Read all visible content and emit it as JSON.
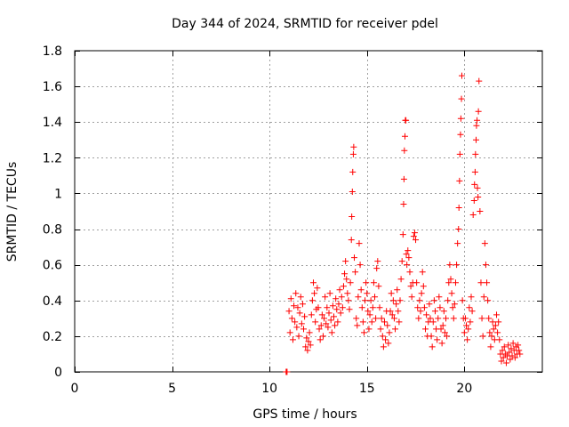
{
  "chart_data": {
    "type": "scatter",
    "title": "Day 344 of 2024, SRMTID for receiver pdel",
    "xlabel": "GPS time / hours",
    "ylabel": "SRMTID / TECUs",
    "xlim": [
      0,
      24
    ],
    "ylim": [
      0,
      1.8
    ],
    "xticks": [
      0,
      5,
      10,
      15,
      20
    ],
    "yticks": [
      0,
      0.2,
      0.4,
      0.6,
      0.8,
      1.0,
      1.2,
      1.4,
      1.6,
      1.8
    ],
    "xtick_labels": [
      "0",
      "5",
      "10",
      "15",
      "20"
    ],
    "ytick_labels": [
      "0",
      "0.2",
      "0.4",
      "0.6",
      "0.8",
      "1",
      "1.2",
      "1.4",
      "1.6",
      "1.8"
    ],
    "grid": true,
    "marker": "plus",
    "color": "#ff0000",
    "series": [
      {
        "name": "SRMTID",
        "points": [
          [
            10.85,
            0.0
          ],
          [
            10.87,
            0.0
          ],
          [
            10.9,
            0.0
          ],
          [
            11.0,
            0.34
          ],
          [
            11.05,
            0.22
          ],
          [
            11.1,
            0.41
          ],
          [
            11.15,
            0.3
          ],
          [
            11.2,
            0.18
          ],
          [
            11.25,
            0.37
          ],
          [
            11.3,
            0.28
          ],
          [
            11.35,
            0.44
          ],
          [
            11.4,
            0.25
          ],
          [
            11.45,
            0.36
          ],
          [
            11.5,
            0.2
          ],
          [
            11.55,
            0.33
          ],
          [
            11.6,
            0.42
          ],
          [
            11.65,
            0.27
          ],
          [
            11.7,
            0.38
          ],
          [
            11.75,
            0.24
          ],
          [
            11.8,
            0.31
          ],
          [
            11.85,
            0.14
          ],
          [
            11.9,
            0.19
          ],
          [
            11.95,
            0.12
          ],
          [
            12.0,
            0.17
          ],
          [
            12.05,
            0.22
          ],
          [
            12.1,
            0.15
          ],
          [
            12.15,
            0.32
          ],
          [
            12.2,
            0.4
          ],
          [
            12.25,
            0.5
          ],
          [
            12.3,
            0.44
          ],
          [
            12.35,
            0.28
          ],
          [
            12.4,
            0.35
          ],
          [
            12.45,
            0.47
          ],
          [
            12.5,
            0.36
          ],
          [
            12.55,
            0.24
          ],
          [
            12.6,
            0.18
          ],
          [
            12.65,
            0.26
          ],
          [
            12.7,
            0.32
          ],
          [
            12.75,
            0.2
          ],
          [
            12.8,
            0.3
          ],
          [
            12.85,
            0.42
          ],
          [
            12.9,
            0.27
          ],
          [
            12.95,
            0.36
          ],
          [
            13.0,
            0.25
          ],
          [
            13.05,
            0.33
          ],
          [
            13.1,
            0.44
          ],
          [
            13.15,
            0.29
          ],
          [
            13.2,
            0.22
          ],
          [
            13.25,
            0.37
          ],
          [
            13.3,
            0.31
          ],
          [
            13.35,
            0.26
          ],
          [
            13.4,
            0.41
          ],
          [
            13.45,
            0.35
          ],
          [
            13.5,
            0.28
          ],
          [
            13.55,
            0.38
          ],
          [
            13.6,
            0.46
          ],
          [
            13.65,
            0.33
          ],
          [
            13.7,
            0.42
          ],
          [
            13.75,
            0.36
          ],
          [
            13.8,
            0.48
          ],
          [
            13.85,
            0.55
          ],
          [
            13.9,
            0.62
          ],
          [
            13.95,
            0.52
          ],
          [
            14.0,
            0.44
          ],
          [
            14.05,
            0.4
          ],
          [
            14.1,
            0.35
          ],
          [
            14.15,
            0.5
          ],
          [
            14.2,
            0.74
          ],
          [
            14.22,
            0.87
          ],
          [
            14.25,
            1.01
          ],
          [
            14.27,
            1.12
          ],
          [
            14.3,
            1.22
          ],
          [
            14.32,
            1.26
          ],
          [
            14.35,
            0.64
          ],
          [
            14.4,
            0.56
          ],
          [
            14.45,
            0.3
          ],
          [
            14.5,
            0.26
          ],
          [
            14.55,
            0.42
          ],
          [
            14.6,
            0.72
          ],
          [
            14.65,
            0.6
          ],
          [
            14.7,
            0.46
          ],
          [
            14.75,
            0.36
          ],
          [
            14.8,
            0.28
          ],
          [
            14.85,
            0.22
          ],
          [
            14.9,
            0.4
          ],
          [
            14.95,
            0.5
          ],
          [
            15.0,
            0.44
          ],
          [
            15.05,
            0.34
          ],
          [
            15.1,
            0.24
          ],
          [
            15.15,
            0.32
          ],
          [
            15.2,
            0.4
          ],
          [
            15.25,
            0.28
          ],
          [
            15.3,
            0.36
          ],
          [
            15.35,
            0.5
          ],
          [
            15.4,
            0.42
          ],
          [
            15.45,
            0.3
          ],
          [
            15.5,
            0.58
          ],
          [
            15.55,
            0.62
          ],
          [
            15.6,
            0.48
          ],
          [
            15.65,
            0.36
          ],
          [
            15.7,
            0.24
          ],
          [
            15.75,
            0.3
          ],
          [
            15.8,
            0.2
          ],
          [
            15.85,
            0.14
          ],
          [
            15.9,
            0.28
          ],
          [
            15.95,
            0.18
          ],
          [
            16.0,
            0.34
          ],
          [
            16.05,
            0.26
          ],
          [
            16.1,
            0.16
          ],
          [
            16.15,
            0.22
          ],
          [
            16.2,
            0.34
          ],
          [
            16.25,
            0.44
          ],
          [
            16.3,
            0.32
          ],
          [
            16.35,
            0.4
          ],
          [
            16.4,
            0.3
          ],
          [
            16.45,
            0.24
          ],
          [
            16.5,
            0.38
          ],
          [
            16.55,
            0.46
          ],
          [
            16.6,
            0.34
          ],
          [
            16.65,
            0.28
          ],
          [
            16.7,
            0.4
          ],
          [
            16.75,
            0.52
          ],
          [
            16.8,
            0.62
          ],
          [
            16.85,
            0.77
          ],
          [
            16.88,
            0.94
          ],
          [
            16.9,
            1.08
          ],
          [
            16.92,
            1.24
          ],
          [
            16.95,
            1.32
          ],
          [
            16.97,
            1.41
          ],
          [
            17.0,
            1.41
          ],
          [
            17.02,
            0.66
          ],
          [
            17.05,
            0.6
          ],
          [
            17.1,
            0.68
          ],
          [
            17.15,
            0.64
          ],
          [
            17.2,
            0.56
          ],
          [
            17.25,
            0.48
          ],
          [
            17.3,
            0.42
          ],
          [
            17.35,
            0.5
          ],
          [
            17.4,
            0.76
          ],
          [
            17.45,
            0.78
          ],
          [
            17.5,
            0.74
          ],
          [
            17.55,
            0.5
          ],
          [
            17.6,
            0.36
          ],
          [
            17.65,
            0.3
          ],
          [
            17.7,
            0.4
          ],
          [
            17.75,
            0.34
          ],
          [
            17.8,
            0.44
          ],
          [
            17.85,
            0.56
          ],
          [
            17.9,
            0.48
          ],
          [
            17.95,
            0.36
          ],
          [
            18.0,
            0.24
          ],
          [
            18.05,
            0.32
          ],
          [
            18.1,
            0.2
          ],
          [
            18.15,
            0.28
          ],
          [
            18.2,
            0.38
          ],
          [
            18.25,
            0.3
          ],
          [
            18.3,
            0.2
          ],
          [
            18.35,
            0.14
          ],
          [
            18.4,
            0.28
          ],
          [
            18.45,
            0.4
          ],
          [
            18.5,
            0.34
          ],
          [
            18.55,
            0.24
          ],
          [
            18.6,
            0.18
          ],
          [
            18.65,
            0.3
          ],
          [
            18.7,
            0.42
          ],
          [
            18.75,
            0.36
          ],
          [
            18.8,
            0.24
          ],
          [
            18.85,
            0.16
          ],
          [
            18.9,
            0.26
          ],
          [
            18.95,
            0.34
          ],
          [
            19.0,
            0.22
          ],
          [
            19.05,
            0.3
          ],
          [
            19.1,
            0.2
          ],
          [
            19.15,
            0.4
          ],
          [
            19.2,
            0.5
          ],
          [
            19.25,
            0.6
          ],
          [
            19.3,
            0.52
          ],
          [
            19.35,
            0.44
          ],
          [
            19.4,
            0.36
          ],
          [
            19.45,
            0.3
          ],
          [
            19.5,
            0.38
          ],
          [
            19.55,
            0.5
          ],
          [
            19.6,
            0.6
          ],
          [
            19.65,
            0.72
          ],
          [
            19.7,
            0.8
          ],
          [
            19.72,
            0.92
          ],
          [
            19.75,
            1.07
          ],
          [
            19.77,
            1.22
          ],
          [
            19.8,
            1.33
          ],
          [
            19.82,
            1.42
          ],
          [
            19.85,
            1.53
          ],
          [
            19.87,
            1.66
          ],
          [
            19.9,
            0.4
          ],
          [
            19.95,
            0.3
          ],
          [
            20.0,
            0.22
          ],
          [
            20.05,
            0.3
          ],
          [
            20.1,
            0.26
          ],
          [
            20.15,
            0.18
          ],
          [
            20.2,
            0.24
          ],
          [
            20.25,
            0.36
          ],
          [
            20.3,
            0.28
          ],
          [
            20.35,
            0.42
          ],
          [
            20.4,
            0.34
          ],
          [
            20.45,
            0.88
          ],
          [
            20.5,
            0.96
          ],
          [
            20.52,
            1.05
          ],
          [
            20.55,
            1.12
          ],
          [
            20.57,
            1.22
          ],
          [
            20.6,
            1.3
          ],
          [
            20.62,
            1.38
          ],
          [
            20.65,
            1.41
          ],
          [
            20.67,
            1.03
          ],
          [
            20.7,
            0.98
          ],
          [
            20.72,
            1.46
          ],
          [
            20.75,
            1.63
          ],
          [
            20.8,
            0.9
          ],
          [
            20.85,
            0.5
          ],
          [
            20.9,
            0.3
          ],
          [
            20.95,
            0.2
          ],
          [
            21.0,
            0.42
          ],
          [
            21.05,
            0.72
          ],
          [
            21.1,
            0.6
          ],
          [
            21.15,
            0.5
          ],
          [
            21.2,
            0.4
          ],
          [
            21.25,
            0.3
          ],
          [
            21.3,
            0.22
          ],
          [
            21.35,
            0.14
          ],
          [
            21.4,
            0.2
          ],
          [
            21.45,
            0.28
          ],
          [
            21.5,
            0.24
          ],
          [
            21.55,
            0.18
          ],
          [
            21.6,
            0.26
          ],
          [
            21.65,
            0.32
          ],
          [
            21.7,
            0.22
          ],
          [
            21.75,
            0.28
          ],
          [
            21.8,
            0.18
          ],
          [
            21.85,
            0.1
          ],
          [
            21.9,
            0.06
          ],
          [
            21.95,
            0.12
          ],
          [
            22.0,
            0.08
          ],
          [
            22.05,
            0.14
          ],
          [
            22.1,
            0.1
          ],
          [
            22.15,
            0.05
          ],
          [
            22.2,
            0.09
          ],
          [
            22.25,
            0.15
          ],
          [
            22.3,
            0.11
          ],
          [
            22.35,
            0.07
          ],
          [
            22.4,
            0.13
          ],
          [
            22.45,
            0.09
          ],
          [
            22.5,
            0.16
          ],
          [
            22.55,
            0.12
          ],
          [
            22.6,
            0.08
          ],
          [
            22.65,
            0.14
          ],
          [
            22.7,
            0.1
          ],
          [
            22.75,
            0.15
          ],
          [
            22.8,
            0.12
          ],
          [
            22.85,
            0.1
          ]
        ]
      }
    ]
  }
}
